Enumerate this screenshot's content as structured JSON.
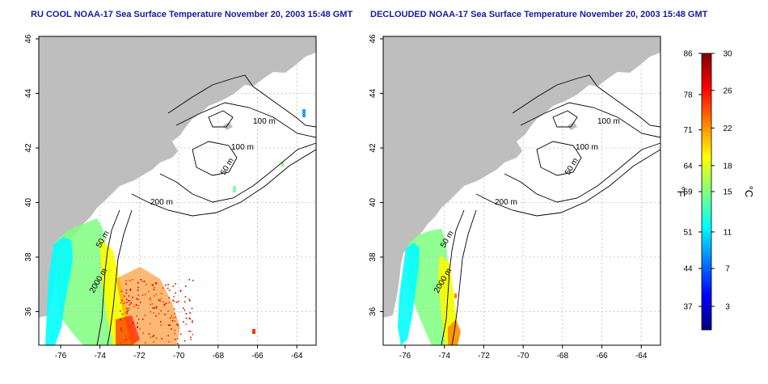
{
  "maps": [
    {
      "title": "RU COOL NOAA-17 Sea Surface Temperature November 20, 2003 15:48 GMT",
      "lon_ticks": [
        "-76",
        "-74",
        "-72",
        "-70",
        "-68",
        "-66",
        "-64"
      ],
      "lat_ticks": [
        "46",
        "44",
        "42",
        "40",
        "38",
        "36"
      ],
      "contour_labels": [
        "100 m",
        "100 m",
        "50 m",
        "200 m",
        "50 m",
        "2000 m"
      ]
    },
    {
      "title": "DECLOUDED NOAA-17 Sea Surface Temperature November 20, 2003 15:48 GMT",
      "lon_ticks": [
        "-76",
        "-74",
        "-72",
        "-70",
        "-68",
        "-66",
        "-64"
      ],
      "lat_ticks": [
        "46",
        "44",
        "42",
        "40",
        "38",
        "36"
      ],
      "contour_labels": [
        "100 m",
        "100 m",
        "50 m",
        "200 m",
        "50 m",
        "2000 m"
      ]
    }
  ],
  "colorbar": {
    "f_ticks": [
      "86",
      "78",
      "71",
      "64",
      "59",
      "51",
      "44",
      "37"
    ],
    "c_ticks": [
      "30",
      "26",
      "22",
      "18",
      "15",
      "11",
      "7",
      "3"
    ],
    "f_label": "°F",
    "c_label": "°C",
    "colors": [
      "#00007f",
      "#0000ff",
      "#007fff",
      "#00ffff",
      "#7fff7f",
      "#ffff00",
      "#ff7f00",
      "#ff0000",
      "#7f0000"
    ]
  },
  "palette": {
    "land": "#bebebe",
    "title": "#1a1a9a",
    "grid": "#bbbbbb",
    "contour": "#000000"
  }
}
